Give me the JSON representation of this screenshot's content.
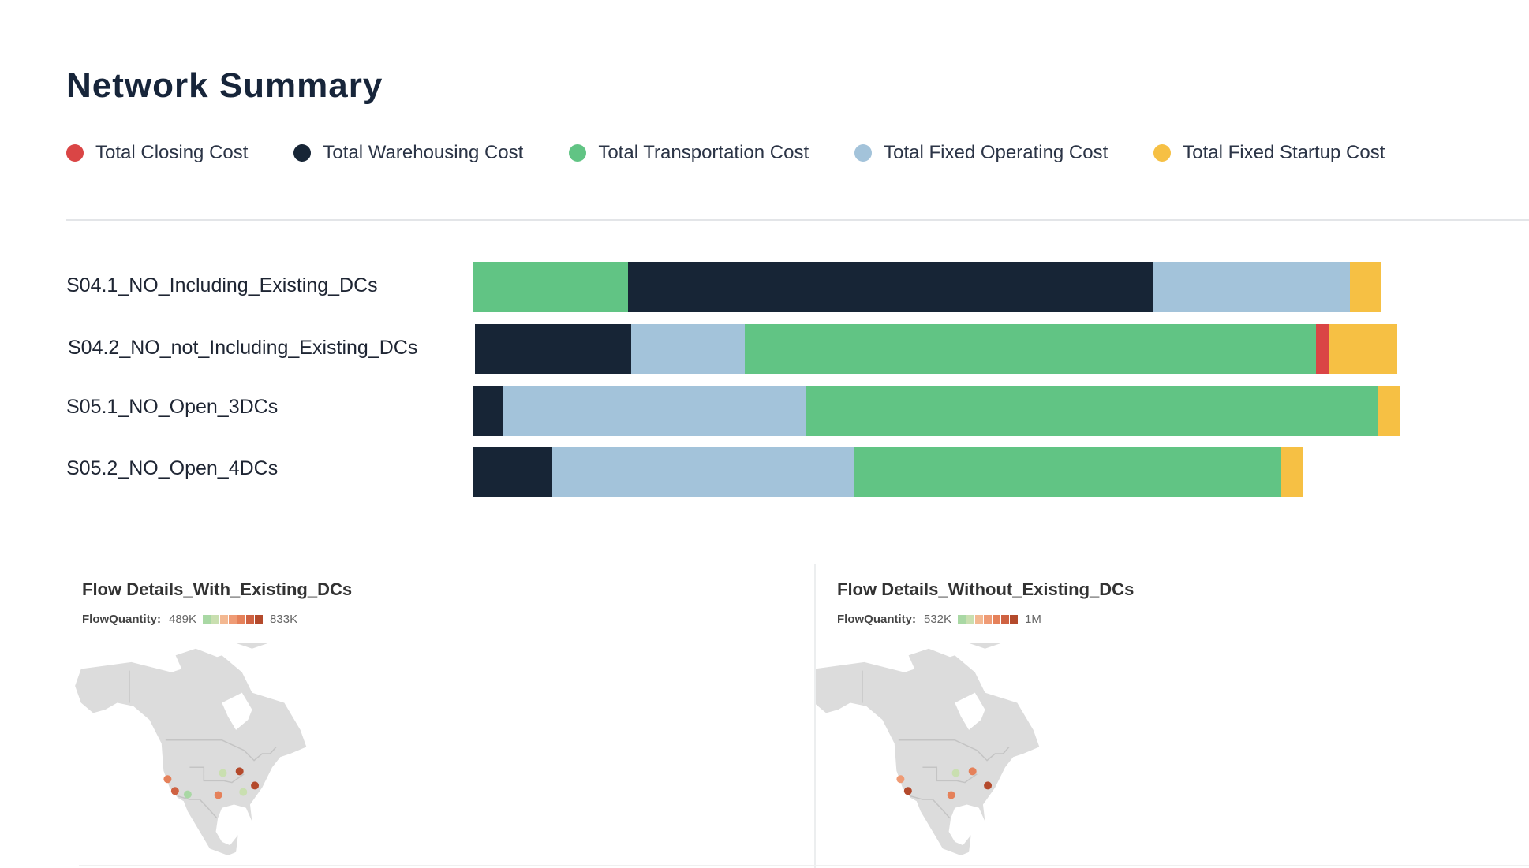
{
  "page": {
    "title": "Network Summary"
  },
  "legend": [
    {
      "label": "Total Closing Cost",
      "color": "#da4545"
    },
    {
      "label": "Total Warehousing Cost",
      "color": "#172536"
    },
    {
      "label": "Total Transportation Cost",
      "color": "#61c484"
    },
    {
      "label": "Total Fixed Operating Cost",
      "color": "#a3c3da"
    },
    {
      "label": "Total Fixed Startup Cost",
      "color": "#f6c044"
    }
  ],
  "scenarios": [
    {
      "name": "S04.1_NO_Including_Existing_DCs",
      "segments": [
        {
          "cost": "Total Transportation Cost",
          "share": 0.163
        },
        {
          "cost": "Total Warehousing Cost",
          "share": 0.555
        },
        {
          "cost": "Total Fixed Operating Cost",
          "share": 0.208
        },
        {
          "cost": "Total Fixed Startup Cost",
          "share": 0.032
        }
      ]
    },
    {
      "name": "S04.2_NO_not_Including_Existing_DCs",
      "segments": [
        {
          "cost": "Total Warehousing Cost",
          "share": 0.165
        },
        {
          "cost": "Total Fixed Operating Cost",
          "share": 0.12
        },
        {
          "cost": "Total Transportation Cost",
          "share": 0.603
        },
        {
          "cost": "Total Closing Cost",
          "share": 0.014
        },
        {
          "cost": "Total Fixed Startup Cost",
          "share": 0.072
        }
      ]
    },
    {
      "name": "S05.1_NO_Open_3DCs",
      "segments": [
        {
          "cost": "Total Warehousing Cost",
          "share": 0.032
        },
        {
          "cost": "Total Fixed Operating Cost",
          "share": 0.319
        },
        {
          "cost": "Total Transportation Cost",
          "share": 0.604
        },
        {
          "cost": "Total Fixed Startup Cost",
          "share": 0.023
        }
      ]
    },
    {
      "name": "S05.2_NO_Open_4DCs",
      "segments": [
        {
          "cost": "Total Warehousing Cost",
          "share": 0.083
        },
        {
          "cost": "Total Fixed Operating Cost",
          "share": 0.319
        },
        {
          "cost": "Total Transportation Cost",
          "share": 0.451
        },
        {
          "cost": "Total Fixed Startup Cost",
          "share": 0.023
        }
      ]
    }
  ],
  "colors": {
    "Total Closing Cost": "#da4545",
    "Total Warehousing Cost": "#172536",
    "Total Transportation Cost": "#61c484",
    "Total Fixed Operating Cost": "#a3c3da",
    "Total Fixed Startup Cost": "#f6c044"
  },
  "flow_panels": [
    {
      "title": "Flow Details_With_Existing_DCs",
      "legend_label": "FlowQuantity:",
      "min": "489K",
      "max": "833K",
      "swatches": [
        "#a9d8a4",
        "#c9dfb0",
        "#f3b891",
        "#ef9b75",
        "#e5815a",
        "#cf6242",
        "#b44a2c"
      ],
      "points": [
        {
          "lat": 37.5,
          "lon": -122.0,
          "level": 4
        },
        {
          "lat": 34.0,
          "lon": -118.3,
          "level": 5
        },
        {
          "lat": 33.0,
          "lon": -112.0,
          "level": 0
        },
        {
          "lat": 39.3,
          "lon": -94.5,
          "level": 1
        },
        {
          "lat": 32.8,
          "lon": -96.8,
          "level": 4
        },
        {
          "lat": 39.8,
          "lon": -86.2,
          "level": 6
        },
        {
          "lat": 33.7,
          "lon": -84.4,
          "level": 1
        },
        {
          "lat": 35.6,
          "lon": -78.6,
          "level": 6
        }
      ]
    },
    {
      "title": "Flow Details_Without_Existing_DCs",
      "legend_label": "FlowQuantity:",
      "min": "532K",
      "max": "1M",
      "swatches": [
        "#a9d8a4",
        "#c9dfb0",
        "#f3b891",
        "#ef9b75",
        "#e5815a",
        "#cf6242",
        "#b44a2c"
      ],
      "points": [
        {
          "lat": 37.5,
          "lon": -122.0,
          "level": 3
        },
        {
          "lat": 34.0,
          "lon": -118.3,
          "level": 6
        },
        {
          "lat": 39.3,
          "lon": -94.5,
          "level": 1
        },
        {
          "lat": 32.8,
          "lon": -96.8,
          "level": 4
        },
        {
          "lat": 39.8,
          "lon": -86.2,
          "level": 4
        },
        {
          "lat": 35.6,
          "lon": -78.6,
          "level": 6
        }
      ]
    }
  ]
}
